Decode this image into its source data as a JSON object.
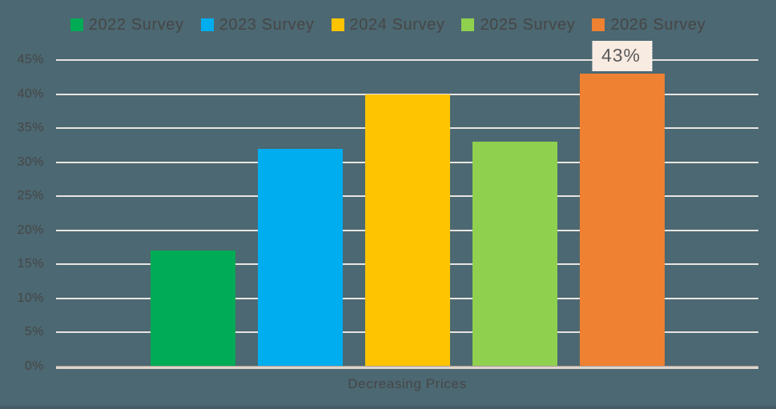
{
  "colors": {
    "background": "#4c6872",
    "gridline": "#e8e5e1",
    "baseline": "#ded6cd",
    "baseline_edge": "#ab9d92",
    "text": "#464646",
    "data_label_bg": "#f8ebe1",
    "data_label_text": "#5a5a5a",
    "data_label_border": "#ffffff"
  },
  "chart_data": {
    "type": "bar",
    "title": "",
    "categories": [
      "Decreasing Prices"
    ],
    "series": [
      {
        "name": "2022 Survey",
        "color": "#00ab55",
        "values": [
          17
        ]
      },
      {
        "name": "2023 Survey",
        "color": "#00aeef",
        "values": [
          32
        ]
      },
      {
        "name": "2024 Survey",
        "color": "#fec402",
        "values": [
          40
        ]
      },
      {
        "name": "2025 Survey",
        "color": "#8fd14f",
        "values": [
          33
        ]
      },
      {
        "name": "2026 Survey",
        "color": "#ee8132",
        "values": [
          43
        ]
      }
    ],
    "xlabel": "Decreasing Prices",
    "ylabel": "",
    "ylim": [
      0,
      45
    ],
    "ytick_step": 5,
    "ytick_labels": [
      "0%",
      "5%",
      "10%",
      "15%",
      "20%",
      "25%",
      "30%",
      "35%",
      "40%",
      "45%"
    ],
    "grid": true,
    "legend_position": "top",
    "data_labels": [
      {
        "series_index": 4,
        "category_index": 0,
        "text": "43%"
      }
    ]
  }
}
